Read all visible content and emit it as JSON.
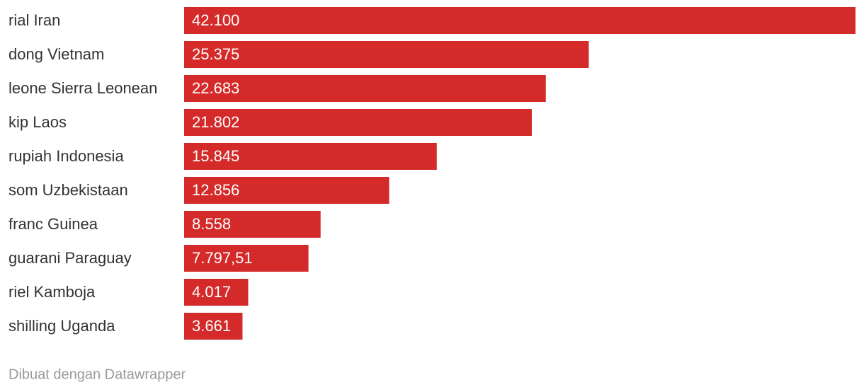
{
  "chart_data": {
    "type": "bar",
    "orientation": "horizontal",
    "categories": [
      "rial Iran",
      "dong Vietnam",
      "leone Sierra Leonean",
      "kip Laos",
      "rupiah Indonesia",
      "som Uzbekistaan",
      "franc Guinea",
      "guarani Paraguay",
      "riel Kamboja",
      "shilling Uganda"
    ],
    "values": [
      42100,
      25375,
      22683,
      21802,
      15845,
      12856,
      8558,
      7797.51,
      4017,
      3661
    ],
    "value_labels": [
      "42.100",
      "25.375",
      "22.683",
      "21.802",
      "15.845",
      "12.856",
      "8.558",
      "7.797,51",
      "4.017",
      "3.661"
    ],
    "color": "#d52a2a"
  },
  "footer": "Dibuat dengan Datawrapper"
}
